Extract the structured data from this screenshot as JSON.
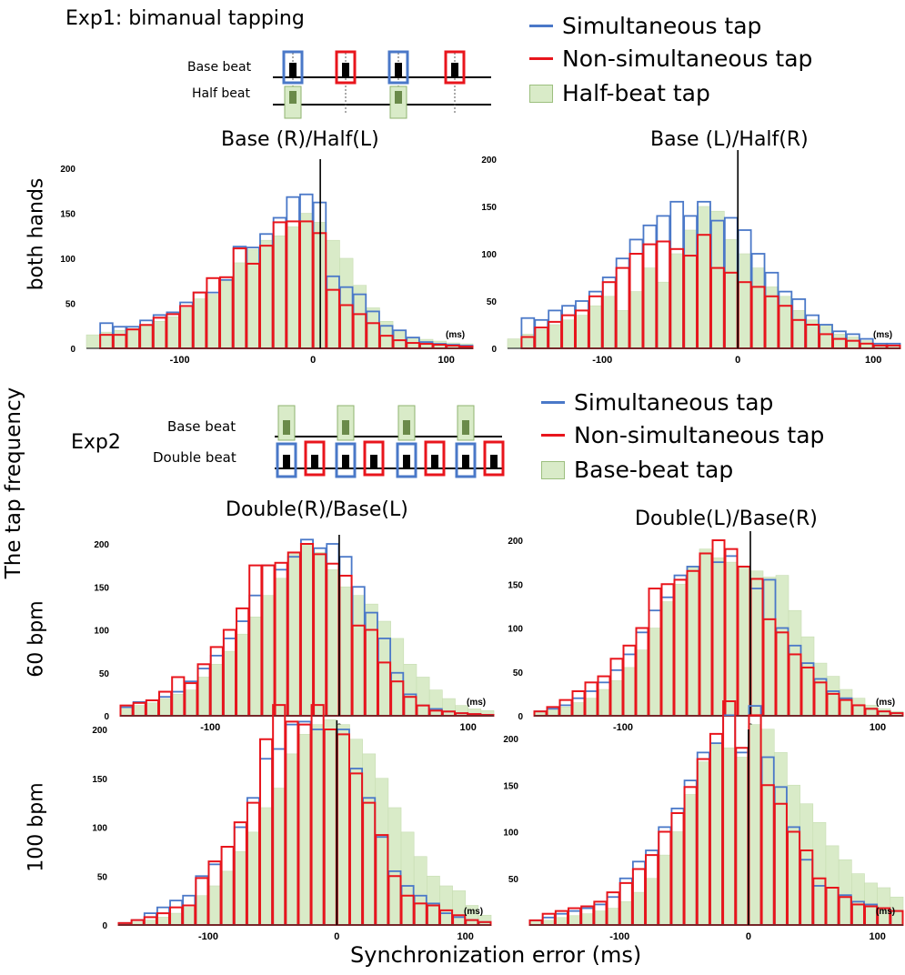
{
  "exp1": {
    "title": "Exp1: bimanual tapping",
    "diagram": {
      "row1": "Base beat",
      "row2": "Half beat"
    },
    "legend": [
      "Simultaneous tap",
      "Non-simultaneous tap",
      "Half-beat tap"
    ]
  },
  "exp2": {
    "title": "Exp2",
    "diagram": {
      "row1": "Base beat",
      "row2": "Double beat"
    },
    "legend": [
      "Simultaneous tap",
      "Non-simultaneous tap",
      "Base-beat tap"
    ]
  },
  "row_labels": {
    "r1": "both hands",
    "r2": "60 bpm",
    "r3": "100 bpm"
  },
  "y_axis_label": "The tap frequency",
  "x_axis_label": "Synchronization error (ms)",
  "colors": {
    "simultaneous": "#4a78c8",
    "non_simultaneous": "#e8151c",
    "shaded": "#d9ebc8"
  },
  "chart_data": [
    {
      "type": "bar",
      "title": "Base (R)/Half(L)",
      "unit_label": "(ms)",
      "x_bins": [
        -170,
        -160,
        -150,
        -140,
        -130,
        -120,
        -110,
        -100,
        -90,
        -80,
        -70,
        -60,
        -50,
        -40,
        -30,
        -20,
        -10,
        0,
        10,
        20,
        30,
        40,
        50,
        60,
        70,
        80,
        90,
        100,
        110
      ],
      "bin_width": 10,
      "xlim": [
        -170,
        120
      ],
      "ylim": [
        0,
        200
      ],
      "yticks": [
        0,
        50,
        100,
        150,
        200
      ],
      "xticks": [
        -100,
        0,
        100
      ],
      "series": [
        {
          "name": "Simultaneous tap",
          "values": [
            0,
            28,
            24,
            24,
            31,
            37,
            40,
            51,
            62,
            62,
            76,
            113,
            112,
            127,
            145,
            168,
            171,
            162,
            80,
            68,
            60,
            41,
            25,
            20,
            12,
            7,
            5,
            4,
            3
          ]
        },
        {
          "name": "Non-simultaneous tap",
          "values": [
            0,
            15,
            15,
            21,
            26,
            34,
            38,
            47,
            62,
            78,
            79,
            111,
            94,
            114,
            140,
            141,
            141,
            128,
            65,
            48,
            38,
            28,
            14,
            9,
            6,
            5,
            4,
            3,
            2
          ]
        },
        {
          "name": "Half-beat tap",
          "values": [
            15,
            18,
            20,
            22,
            25,
            30,
            35,
            45,
            55,
            60,
            75,
            95,
            110,
            120,
            125,
            135,
            150,
            140,
            120,
            100,
            70,
            45,
            30,
            20,
            12,
            10,
            8,
            6,
            5
          ]
        }
      ]
    },
    {
      "type": "bar",
      "title": "Base (L)/Half(R)",
      "unit_label": "(ms)",
      "x_bins": [
        -170,
        -160,
        -150,
        -140,
        -130,
        -120,
        -110,
        -100,
        -90,
        -80,
        -70,
        -60,
        -50,
        -40,
        -30,
        -20,
        -10,
        0,
        10,
        20,
        30,
        40,
        50,
        60,
        70,
        80,
        90,
        100,
        110
      ],
      "bin_width": 10,
      "xlim": [
        -170,
        120
      ],
      "ylim": [
        0,
        200
      ],
      "yticks": [
        0,
        50,
        100,
        150,
        200
      ],
      "xticks": [
        -100,
        0,
        100
      ],
      "series": [
        {
          "name": "Simultaneous tap",
          "values": [
            0,
            32,
            30,
            40,
            45,
            50,
            60,
            75,
            95,
            115,
            130,
            140,
            155,
            140,
            155,
            135,
            138,
            125,
            100,
            80,
            60,
            52,
            35,
            25,
            18,
            15,
            10,
            5,
            5
          ]
        },
        {
          "name": "Non-simultaneous tap",
          "values": [
            0,
            12,
            22,
            28,
            35,
            40,
            55,
            70,
            85,
            100,
            110,
            113,
            105,
            98,
            120,
            85,
            80,
            70,
            65,
            55,
            45,
            30,
            25,
            15,
            10,
            8,
            5,
            3,
            3
          ]
        },
        {
          "name": "Half-beat tap",
          "values": [
            10,
            15,
            20,
            25,
            30,
            35,
            45,
            55,
            40,
            60,
            85,
            70,
            100,
            125,
            150,
            145,
            115,
            100,
            85,
            65,
            55,
            40,
            30,
            25,
            15,
            12,
            8,
            5,
            3
          ]
        }
      ]
    },
    {
      "type": "bar",
      "title": "Double(R)/Base(L)",
      "unit_label": "(ms)",
      "x_bins": [
        -170,
        -160,
        -150,
        -140,
        -130,
        -120,
        -110,
        -100,
        -90,
        -80,
        -70,
        -60,
        -50,
        -40,
        -30,
        -20,
        -10,
        0,
        10,
        20,
        30,
        40,
        50,
        60,
        70,
        80,
        90,
        100,
        110
      ],
      "bin_width": 10,
      "xlim": [
        -170,
        120
      ],
      "ylim": [
        0,
        200
      ],
      "yticks": [
        0,
        50,
        100,
        150,
        200
      ],
      "xticks": [
        -100,
        0,
        100
      ],
      "series": [
        {
          "name": "Simultaneous tap",
          "values": [
            10,
            16,
            18,
            22,
            28,
            40,
            55,
            70,
            90,
            110,
            140,
            175,
            170,
            185,
            205,
            195,
            200,
            185,
            150,
            120,
            90,
            50,
            25,
            12,
            8,
            5,
            3,
            2,
            1
          ]
        },
        {
          "name": "Non-simultaneous tap",
          "values": [
            12,
            15,
            18,
            28,
            45,
            38,
            60,
            80,
            100,
            125,
            175,
            175,
            178,
            190,
            200,
            188,
            177,
            163,
            105,
            100,
            62,
            40,
            22,
            12,
            6,
            5,
            3,
            2,
            1
          ]
        },
        {
          "name": "Half-beat tap",
          "values": [
            10,
            12,
            15,
            20,
            25,
            30,
            45,
            60,
            75,
            95,
            115,
            140,
            160,
            190,
            200,
            190,
            170,
            150,
            140,
            130,
            110,
            90,
            60,
            45,
            30,
            20,
            12,
            8,
            6
          ]
        }
      ]
    },
    {
      "type": "bar",
      "title": "Double(L)/Base(R)",
      "unit_label": "(ms)",
      "x_bins": [
        -170,
        -160,
        -150,
        -140,
        -130,
        -120,
        -110,
        -100,
        -90,
        -80,
        -70,
        -60,
        -50,
        -40,
        -30,
        -20,
        -10,
        0,
        10,
        20,
        30,
        40,
        50,
        60,
        70,
        80,
        90,
        100,
        110
      ],
      "bin_width": 10,
      "xlim": [
        -170,
        120
      ],
      "ylim": [
        0,
        200
      ],
      "yticks": [
        0,
        50,
        100,
        150,
        200
      ],
      "xticks": [
        -100,
        0,
        100
      ],
      "series": [
        {
          "name": "Simultaneous tap",
          "values": [
            5,
            8,
            12,
            20,
            28,
            38,
            52,
            70,
            95,
            120,
            135,
            160,
            170,
            185,
            175,
            182,
            170,
            145,
            155,
            100,
            80,
            60,
            42,
            28,
            20,
            12,
            8,
            5,
            3
          ]
        },
        {
          "name": "Non-simultaneous tap",
          "values": [
            5,
            10,
            18,
            28,
            38,
            45,
            65,
            80,
            100,
            145,
            150,
            155,
            165,
            185,
            200,
            190,
            170,
            156,
            110,
            95,
            70,
            55,
            38,
            25,
            18,
            12,
            8,
            5,
            3
          ]
        },
        {
          "name": "Half-beat tap",
          "values": [
            5,
            8,
            10,
            15,
            20,
            30,
            40,
            55,
            75,
            100,
            130,
            150,
            170,
            190,
            180,
            175,
            170,
            165,
            158,
            160,
            120,
            90,
            60,
            45,
            30,
            20,
            12,
            8,
            5
          ]
        }
      ]
    },
    {
      "type": "bar",
      "title": "",
      "unit_label": "(ms)",
      "x_bins": [
        -170,
        -160,
        -150,
        -140,
        -130,
        -120,
        -110,
        -100,
        -90,
        -80,
        -70,
        -60,
        -50,
        -40,
        -30,
        -20,
        -10,
        0,
        10,
        20,
        30,
        40,
        50,
        60,
        70,
        80,
        90,
        100,
        110
      ],
      "bin_width": 10,
      "xlim": [
        -170,
        120
      ],
      "ylim": [
        0,
        230
      ],
      "yticks": [
        0,
        50,
        100,
        150,
        200
      ],
      "xticks": [
        -100,
        0,
        100
      ],
      "series": [
        {
          "name": "Simultaneous tap",
          "values": [
            2,
            5,
            12,
            18,
            25,
            30,
            50,
            62,
            80,
            100,
            130,
            170,
            180,
            205,
            208,
            200,
            200,
            200,
            160,
            130,
            90,
            55,
            40,
            30,
            22,
            12,
            8,
            5,
            3
          ]
        },
        {
          "name": "Non-simultaneous tap",
          "values": [
            2,
            5,
            8,
            12,
            18,
            20,
            48,
            65,
            80,
            105,
            125,
            190,
            225,
            208,
            205,
            225,
            200,
            195,
            155,
            125,
            92,
            50,
            30,
            22,
            20,
            15,
            10,
            5,
            3
          ]
        },
        {
          "name": "Half-beat tap",
          "values": [
            2,
            3,
            5,
            8,
            12,
            18,
            30,
            40,
            55,
            75,
            95,
            120,
            140,
            175,
            195,
            205,
            210,
            205,
            190,
            175,
            150,
            120,
            95,
            70,
            50,
            40,
            35,
            20,
            10
          ]
        }
      ]
    },
    {
      "type": "bar",
      "title": "",
      "unit_label": "(ms)",
      "x_bins": [
        -170,
        -160,
        -150,
        -140,
        -130,
        -120,
        -110,
        -100,
        -90,
        -80,
        -70,
        -60,
        -50,
        -40,
        -30,
        -20,
        -10,
        0,
        10,
        20,
        30,
        40,
        50,
        60,
        70,
        80,
        90,
        100,
        110
      ],
      "bin_width": 10,
      "xlim": [
        -170,
        120
      ],
      "ylim": [
        0,
        240
      ],
      "yticks": [
        50,
        100,
        150,
        200
      ],
      "xticks": [
        -100,
        0,
        100
      ],
      "series": [
        {
          "name": "Simultaneous tap",
          "values": [
            5,
            8,
            12,
            15,
            18,
            22,
            30,
            50,
            68,
            80,
            105,
            125,
            155,
            185,
            195,
            225,
            185,
            235,
            180,
            148,
            105,
            70,
            42,
            40,
            32,
            25,
            22,
            18,
            15
          ]
        },
        {
          "name": "Non-simultaneous tap",
          "values": [
            5,
            12,
            15,
            18,
            20,
            25,
            35,
            45,
            60,
            75,
            100,
            120,
            148,
            178,
            205,
            240,
            190,
            225,
            150,
            130,
            100,
            80,
            50,
            40,
            30,
            22,
            20,
            18,
            15
          ]
        },
        {
          "name": "Half-beat tap",
          "values": [
            5,
            5,
            8,
            10,
            12,
            15,
            18,
            25,
            35,
            50,
            75,
            100,
            140,
            175,
            195,
            190,
            180,
            215,
            210,
            185,
            150,
            130,
            110,
            85,
            70,
            55,
            45,
            40,
            30
          ]
        }
      ]
    }
  ]
}
